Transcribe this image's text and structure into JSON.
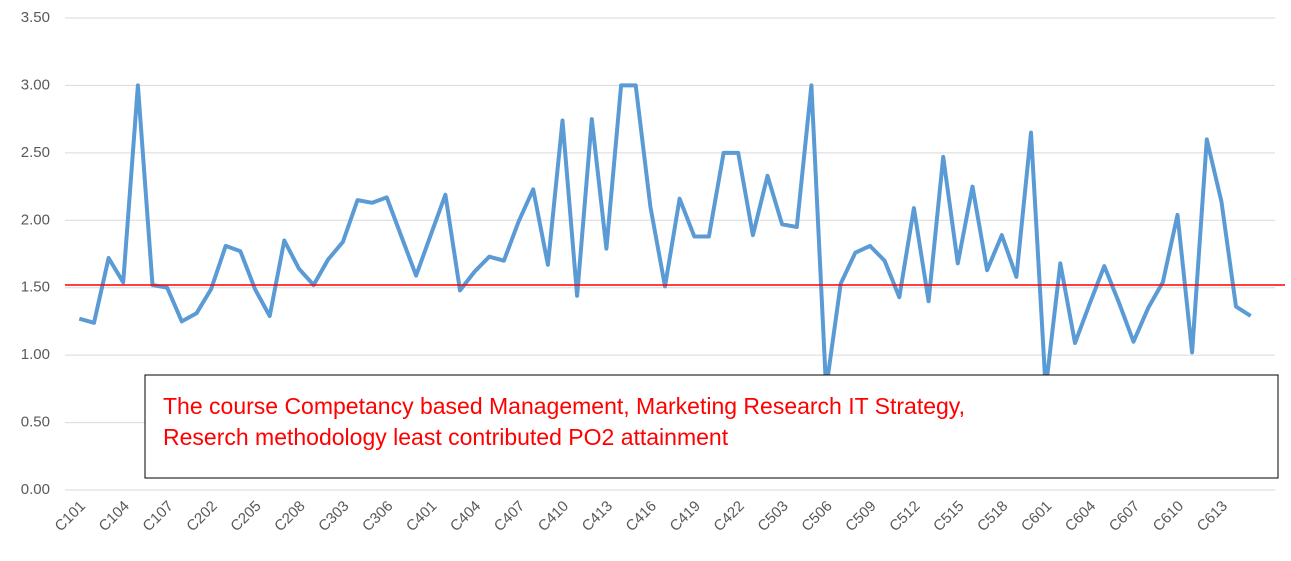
{
  "chart_data": {
    "type": "line",
    "categories": [
      "C101",
      null,
      null,
      "C104",
      null,
      null,
      "C107",
      null,
      null,
      "C202",
      null,
      null,
      "C205",
      null,
      null,
      "C208",
      null,
      null,
      "C303",
      null,
      null,
      "C306",
      null,
      null,
      "C401",
      null,
      null,
      "C404",
      null,
      null,
      "C407",
      null,
      null,
      "C410",
      null,
      null,
      "C413",
      null,
      null,
      "C416",
      null,
      null,
      "C419",
      null,
      null,
      "C422",
      null,
      null,
      "C503",
      null,
      null,
      "C506",
      null,
      null,
      "C509",
      null,
      null,
      "C512",
      null,
      null,
      "C515",
      null,
      null,
      "C518",
      null,
      null,
      "C601",
      null,
      null,
      "C604",
      null,
      null,
      "C607",
      null,
      null,
      "C610",
      null,
      null,
      "C613",
      null,
      null
    ],
    "values": [
      1.27,
      1.24,
      1.72,
      1.54,
      3.0,
      1.52,
      1.5,
      1.25,
      1.31,
      1.49,
      1.81,
      1.77,
      1.49,
      1.29,
      1.85,
      1.64,
      1.52,
      1.71,
      1.84,
      2.15,
      2.13,
      2.17,
      1.88,
      1.59,
      1.89,
      2.19,
      1.48,
      1.62,
      1.73,
      1.7,
      1.99,
      2.23,
      1.67,
      2.74,
      1.44,
      2.75,
      1.79,
      3.0,
      3.0,
      2.1,
      1.51,
      2.16,
      1.88,
      1.88,
      2.5,
      2.5,
      1.89,
      2.33,
      1.97,
      1.95,
      3.0,
      0.75,
      1.53,
      1.76,
      1.81,
      1.7,
      1.43,
      2.09,
      1.4,
      2.47,
      1.68,
      2.25,
      1.63,
      1.89,
      1.58,
      2.65,
      0.75,
      1.68,
      1.09,
      1.38,
      1.66,
      1.39,
      1.1,
      1.35,
      1.54,
      2.04,
      1.02,
      2.6,
      2.14,
      1.36,
      1.29
    ],
    "color": "#5b9bd5",
    "ylim": [
      0,
      3.5
    ],
    "yticks": [
      {
        "value": 0,
        "label": "0.00"
      },
      {
        "value": 0.5,
        "label": "0.50"
      },
      {
        "value": 1,
        "label": "1.00"
      },
      {
        "value": 1.5,
        "label": "1.50"
      },
      {
        "value": 2,
        "label": "2.00"
      },
      {
        "value": 2.5,
        "label": "2.50"
      },
      {
        "value": 3,
        "label": "3.00"
      },
      {
        "value": 3.5,
        "label": "3.50"
      }
    ],
    "grid": true,
    "reference_line": {
      "value": 1.52,
      "color": "#ff0000"
    },
    "annotation": [
      "The course Competancy based Management, Marketing Research IT Strategy,",
      "Reserch methodology least contributed PO2 attainment"
    ]
  }
}
